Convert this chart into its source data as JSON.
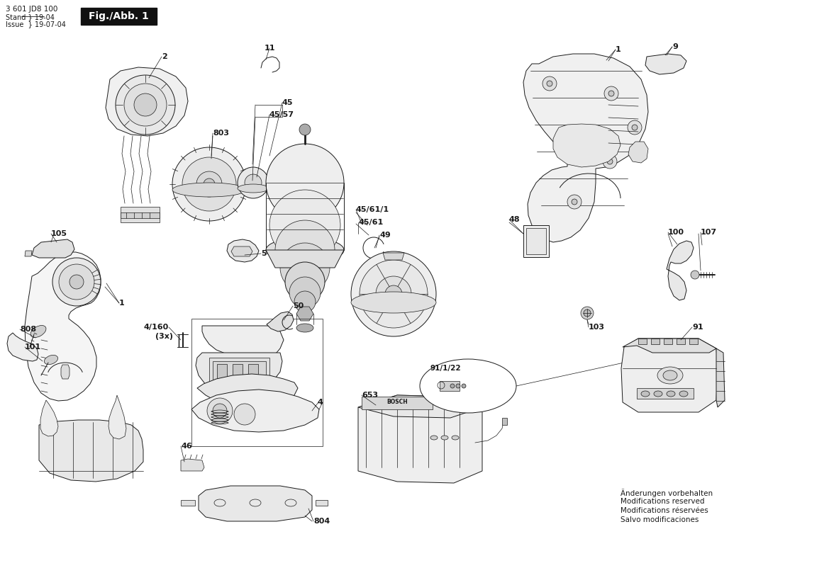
{
  "fig_label": "Fig./Abb. 1",
  "model_number": "3 601 JD8 100",
  "stand_line1": "Stand } 19-04",
  "stand_line2": "Issue  } 19-07-04",
  "footer_lines": [
    "Änderungen vorbehalten",
    "Modifications reserved",
    "Modifications réservées",
    "Salvo modificaciones"
  ],
  "bg_color": "#ffffff",
  "drawing_color": "#1a1a1a",
  "label_color": "#1a1a1a",
  "fig_label_bg": "#111111",
  "fig_label_fg": "#ffffff",
  "lw_main": 0.9,
  "lw_thin": 0.5,
  "lw_med": 0.7
}
